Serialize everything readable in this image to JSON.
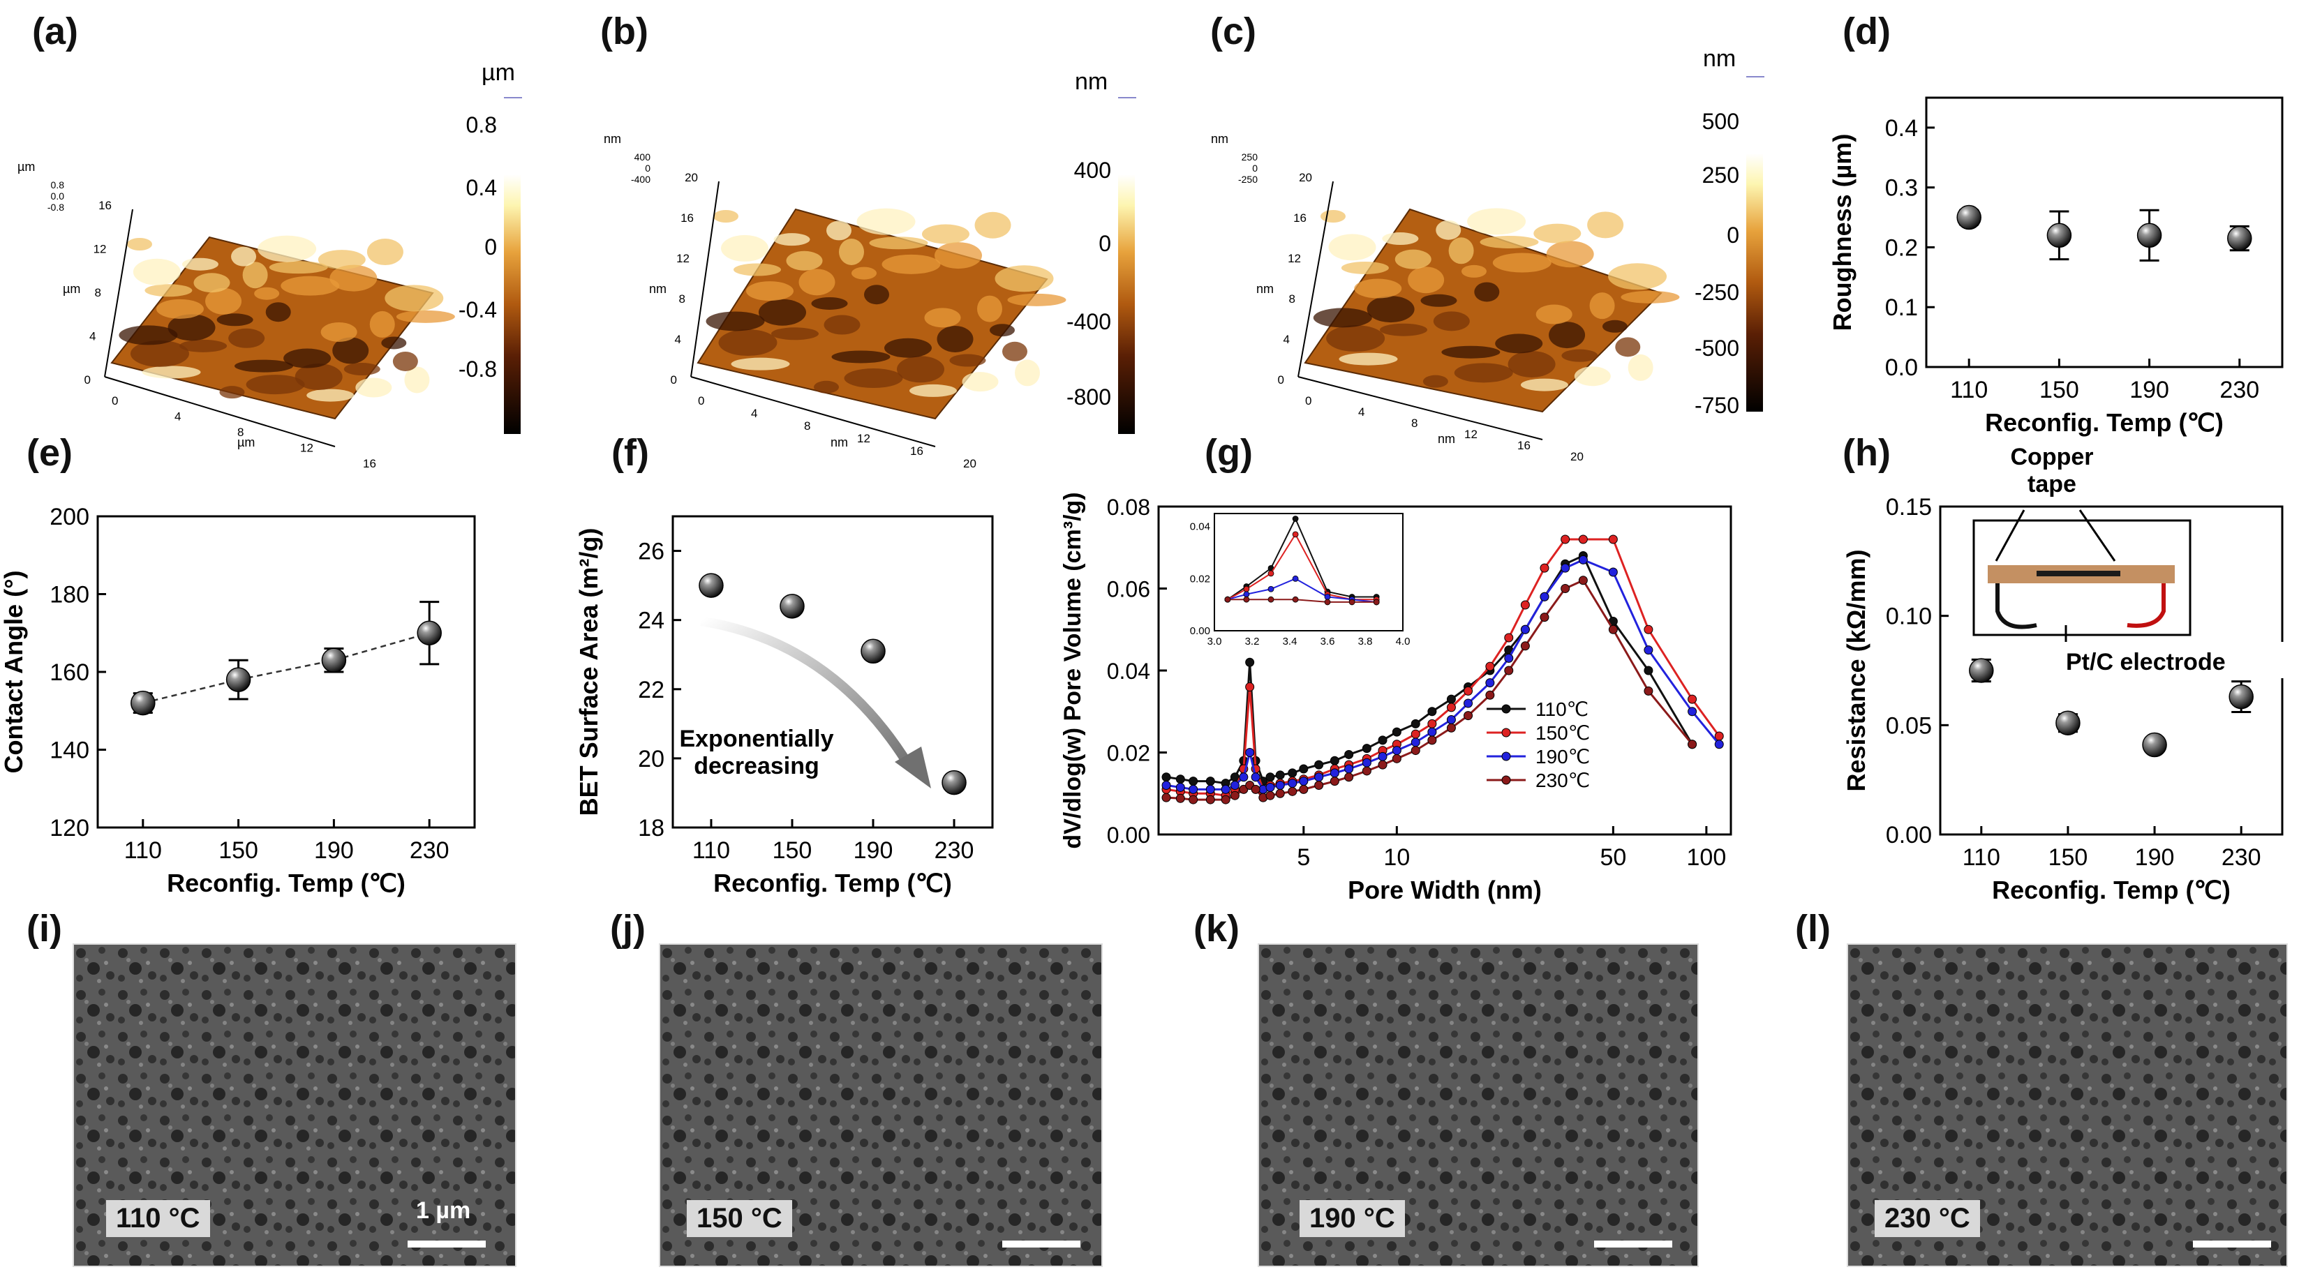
{
  "panels": {
    "a": "(a)",
    "b": "(b)",
    "c": "(c)",
    "d": "(d)",
    "e": "(e)",
    "f": "(f)",
    "g": "(g)",
    "h": "(h)",
    "i": "(i)",
    "j": "(j)",
    "k": "(k)",
    "l": "(l)"
  },
  "afm": [
    {
      "unit": "µm",
      "axis_unit": "µm",
      "colorbar_ticks": [
        "0.8",
        "0.4",
        "0",
        "-0.4",
        "-0.8"
      ],
      "z_ticks": [
        "0.8",
        "0.0",
        "-0.8"
      ],
      "xy_ticks": [
        "0",
        "4",
        "8",
        "12",
        "16"
      ]
    },
    {
      "unit": "nm",
      "axis_unit": "nm",
      "colorbar_ticks": [
        "400",
        "0",
        "-400",
        "-800"
      ],
      "z_ticks": [
        "400",
        "0",
        "-400"
      ],
      "xy_ticks": [
        "0",
        "4",
        "8",
        "12",
        "16",
        "20"
      ]
    },
    {
      "unit": "nm",
      "axis_unit": "nm",
      "colorbar_ticks": [
        "500",
        "250",
        "0",
        "-250",
        "-500",
        "-750"
      ],
      "z_ticks": [
        "250",
        "0",
        "-250"
      ],
      "xy_ticks": [
        "0",
        "4",
        "8",
        "12",
        "16",
        "20"
      ]
    }
  ],
  "chart_data": [
    {
      "id": "d",
      "type": "scatter",
      "categories": [
        "110",
        "150",
        "190",
        "230"
      ],
      "values": [
        0.25,
        0.22,
        0.22,
        0.215
      ],
      "errors": [
        0.012,
        0.04,
        0.042,
        0.02
      ],
      "xlabel": "Reconfig. Temp (℃)",
      "ylabel": "Roughness (µm)",
      "ylim": [
        0.0,
        0.45
      ],
      "yticks": [
        "0.0",
        "0.1",
        "0.2",
        "0.3",
        "0.4"
      ]
    },
    {
      "id": "e",
      "type": "scatter",
      "categories": [
        "110",
        "150",
        "190",
        "230"
      ],
      "values": [
        152,
        158,
        163,
        170
      ],
      "errors": [
        2.5,
        5,
        3,
        8
      ],
      "trend": "dashed",
      "xlabel": "Reconfig. Temp (℃)",
      "ylabel": "Contact Angle (°)",
      "ylim": [
        120,
        200
      ],
      "yticks": [
        "120",
        "140",
        "160",
        "180",
        "200"
      ]
    },
    {
      "id": "f",
      "type": "scatter",
      "categories": [
        "110",
        "150",
        "190",
        "230"
      ],
      "values": [
        25.0,
        24.4,
        23.1,
        19.3
      ],
      "annotation": "Exponentially\ndecreasing",
      "xlabel": "Reconfig. Temp (℃)",
      "ylabel": "BET Surface Area (m²/g)",
      "ylim": [
        18,
        27
      ],
      "yticks": [
        "18",
        "20",
        "22",
        "24",
        "26"
      ]
    },
    {
      "id": "g",
      "type": "line",
      "xscale": "log",
      "xlabel": "Pore Width (nm)",
      "ylabel": "dV/dlog(w) Pore Volume (cm³/g)",
      "xlim": [
        1.7,
        120
      ],
      "ylim": [
        0.0,
        0.08
      ],
      "xticks": [
        "5",
        "10",
        "50",
        "100"
      ],
      "yticks": [
        "0.00",
        "0.02",
        "0.04",
        "0.06",
        "0.08"
      ],
      "series": [
        {
          "name": "110℃",
          "color": "#111111",
          "x": [
            1.8,
            2.0,
            2.2,
            2.5,
            2.8,
            3.0,
            3.2,
            3.35,
            3.5,
            3.7,
            3.9,
            4.2,
            4.6,
            5.0,
            5.6,
            6.3,
            7,
            8,
            9,
            10,
            11.5,
            13,
            15,
            17,
            20,
            23,
            26,
            30,
            35,
            40,
            50,
            65,
            90
          ],
          "y": [
            0.014,
            0.0135,
            0.013,
            0.013,
            0.0125,
            0.014,
            0.018,
            0.042,
            0.018,
            0.013,
            0.014,
            0.0145,
            0.015,
            0.016,
            0.017,
            0.018,
            0.0195,
            0.021,
            0.023,
            0.025,
            0.027,
            0.03,
            0.033,
            0.036,
            0.04,
            0.045,
            0.05,
            0.058,
            0.066,
            0.068,
            0.052,
            0.04,
            0.022
          ]
        },
        {
          "name": "150℃",
          "color": "#dd2222",
          "x": [
            1.8,
            2.0,
            2.2,
            2.5,
            2.8,
            3.0,
            3.2,
            3.35,
            3.5,
            3.7,
            3.9,
            4.2,
            4.6,
            5.0,
            5.6,
            6.3,
            7,
            8,
            9,
            10,
            11.5,
            13,
            15,
            17,
            20,
            23,
            26,
            30,
            35,
            40,
            50,
            65,
            90,
            110
          ],
          "y": [
            0.011,
            0.0105,
            0.01,
            0.01,
            0.0095,
            0.011,
            0.016,
            0.036,
            0.016,
            0.011,
            0.012,
            0.0125,
            0.013,
            0.0135,
            0.0145,
            0.016,
            0.017,
            0.0185,
            0.0205,
            0.022,
            0.0245,
            0.027,
            0.031,
            0.035,
            0.041,
            0.048,
            0.056,
            0.065,
            0.072,
            0.072,
            0.072,
            0.05,
            0.033,
            0.024
          ]
        },
        {
          "name": "190℃",
          "color": "#2222dd",
          "x": [
            1.8,
            2.0,
            2.2,
            2.5,
            2.8,
            3.0,
            3.2,
            3.35,
            3.5,
            3.7,
            3.9,
            4.2,
            4.6,
            5.0,
            5.6,
            6.3,
            7,
            8,
            9,
            10,
            11.5,
            13,
            15,
            17,
            20,
            23,
            26,
            30,
            35,
            40,
            50,
            65,
            90,
            110
          ],
          "y": [
            0.012,
            0.0115,
            0.011,
            0.011,
            0.011,
            0.012,
            0.014,
            0.02,
            0.014,
            0.011,
            0.0115,
            0.012,
            0.0125,
            0.013,
            0.014,
            0.015,
            0.016,
            0.0175,
            0.019,
            0.0205,
            0.0225,
            0.025,
            0.028,
            0.032,
            0.037,
            0.043,
            0.05,
            0.058,
            0.065,
            0.067,
            0.064,
            0.045,
            0.03,
            0.022
          ]
        },
        {
          "name": "230℃",
          "color": "#8b1a1a",
          "x": [
            1.8,
            2.0,
            2.2,
            2.5,
            2.8,
            3.0,
            3.2,
            3.35,
            3.5,
            3.7,
            3.9,
            4.2,
            4.6,
            5.0,
            5.6,
            6.3,
            7,
            8,
            9,
            10,
            11.5,
            13,
            15,
            17,
            20,
            23,
            26,
            30,
            35,
            40,
            50,
            65,
            90
          ],
          "y": [
            0.009,
            0.0088,
            0.0085,
            0.0085,
            0.0085,
            0.0095,
            0.011,
            0.012,
            0.011,
            0.009,
            0.0095,
            0.01,
            0.0105,
            0.011,
            0.012,
            0.013,
            0.014,
            0.0155,
            0.017,
            0.0185,
            0.0205,
            0.023,
            0.026,
            0.029,
            0.034,
            0.04,
            0.046,
            0.053,
            0.06,
            0.062,
            0.05,
            0.035,
            0.022
          ]
        }
      ],
      "inset": {
        "xlim": [
          3.0,
          4.0
        ],
        "ylim": [
          0.0,
          0.045
        ],
        "xticks": [
          "3.0",
          "3.2",
          "3.4",
          "3.6",
          "3.8",
          "4.0"
        ],
        "yticks": [
          "0.00",
          "0.02",
          "0.04"
        ],
        "series": [
          {
            "color": "#111111",
            "x": [
              3.07,
              3.17,
              3.3,
              3.43,
              3.6,
              3.73,
              3.86
            ],
            "y": [
              0.012,
              0.017,
              0.024,
              0.043,
              0.015,
              0.013,
              0.013
            ]
          },
          {
            "color": "#dd2222",
            "x": [
              3.07,
              3.17,
              3.3,
              3.43,
              3.6,
              3.73,
              3.86
            ],
            "y": [
              0.012,
              0.016,
              0.022,
              0.037,
              0.014,
              0.012,
              0.012
            ]
          },
          {
            "color": "#2222dd",
            "x": [
              3.07,
              3.17,
              3.3,
              3.43,
              3.6,
              3.73,
              3.86
            ],
            "y": [
              0.012,
              0.014,
              0.016,
              0.02,
              0.013,
              0.012,
              0.011
            ]
          },
          {
            "color": "#8b1a1a",
            "x": [
              3.07,
              3.17,
              3.3,
              3.43,
              3.6,
              3.73,
              3.86
            ],
            "y": [
              0.012,
              0.012,
              0.012,
              0.012,
              0.011,
              0.011,
              0.011
            ]
          }
        ]
      },
      "legend_position": "center-right"
    },
    {
      "id": "h",
      "type": "scatter",
      "categories": [
        "110",
        "150",
        "190",
        "230"
      ],
      "values": [
        0.075,
        0.051,
        0.041,
        0.063
      ],
      "errors": [
        0.005,
        0.004,
        0.002,
        0.007
      ],
      "xlabel": "Reconfig. Temp (℃)",
      "ylabel": "Resistance (kΩ/mm)",
      "ylim": [
        0.0,
        0.15
      ],
      "yticks": [
        "0.00",
        "0.05",
        "0.10",
        "0.15"
      ],
      "inset_labels": {
        "copper": "Copper\ntape",
        "electrode": "Pt/C electrode"
      }
    }
  ],
  "sem": [
    {
      "label": "110 °C",
      "scalebar": "1 µm"
    },
    {
      "label": "150 °C",
      "scalebar": ""
    },
    {
      "label": "190 °C",
      "scalebar": ""
    },
    {
      "label": "230 °C",
      "scalebar": ""
    }
  ]
}
